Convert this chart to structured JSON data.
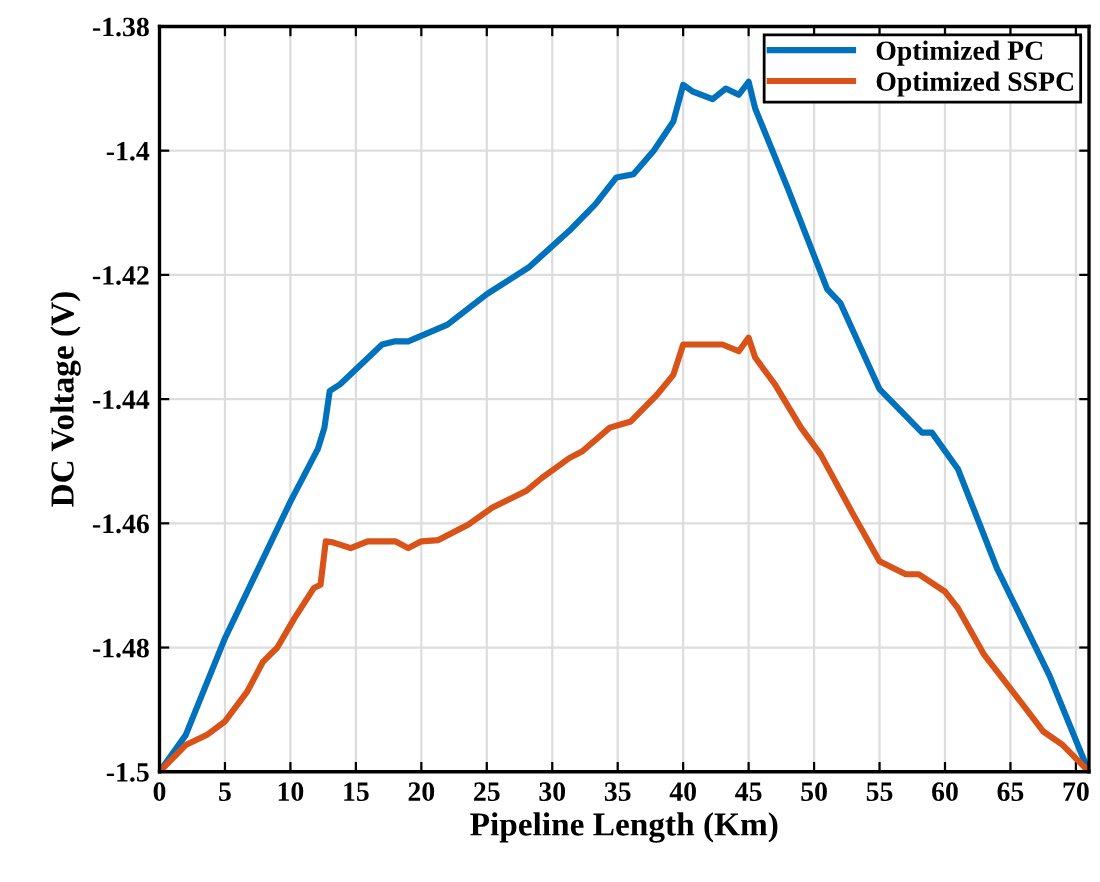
{
  "chart_data": {
    "type": "line",
    "xlabel": "Pipeline Length (Km)",
    "ylabel": "DC Voltage (V)",
    "xlim": [
      0,
      71
    ],
    "ylim": [
      -1.5,
      -1.38
    ],
    "xticks": [
      0,
      5,
      10,
      15,
      20,
      25,
      30,
      35,
      40,
      45,
      50,
      55,
      60,
      65,
      70
    ],
    "yticks": [
      -1.5,
      -1.48,
      -1.46,
      -1.44,
      -1.42,
      -1.4,
      -1.38
    ],
    "grid": true,
    "legend": "top right",
    "line_style": "solid",
    "marker": "none",
    "series": [
      {
        "name": "Optimized PC",
        "color": "#0072bd",
        "x": [
          0,
          2,
          5,
          10,
          12.1,
          12.6,
          13,
          13.8,
          17,
          18,
          19,
          22,
          25,
          28.2,
          31.3,
          33.3,
          34.9,
          36.2,
          37.75,
          39.25,
          40,
          40.75,
          42.25,
          43.25,
          44.25,
          45,
          45.5,
          48,
          51,
          52,
          55,
          57,
          58.25,
          59,
          61,
          64,
          68,
          70.5,
          71
        ],
        "values": [
          -1.5,
          -1.4941,
          -1.4785,
          -1.4565,
          -1.448,
          -1.4446,
          -1.4387,
          -1.4376,
          -1.4312,
          -1.4307,
          -1.4307,
          -1.428,
          -1.4231,
          -1.4188,
          -1.4129,
          -1.4086,
          -1.4043,
          -1.4038,
          -1.4,
          -1.3953,
          -1.3894,
          -1.3905,
          -1.3917,
          -1.39,
          -1.391,
          -1.3889,
          -1.3932,
          -1.4061,
          -1.4223,
          -1.4245,
          -1.4384,
          -1.4427,
          -1.4454,
          -1.4454,
          -1.4513,
          -1.4674,
          -1.4846,
          -1.4975,
          -1.5
        ]
      },
      {
        "name": "Optimized SSPC",
        "color": "#d95319",
        "x": [
          0,
          2,
          3.6,
          5,
          6.7,
          7.9,
          9,
          10.3,
          11.8,
          12.3,
          12.7,
          13.3,
          14.6,
          15.9,
          18,
          19,
          20,
          21.3,
          23.6,
          25.4,
          28,
          29.2,
          31.3,
          32.3,
          34.4,
          36,
          38,
          39.25,
          40,
          43,
          44.25,
          45,
          45.5,
          47,
          49,
          50.5,
          53,
          55,
          57,
          58,
          60,
          61,
          63,
          65,
          67.5,
          69,
          71
        ],
        "values": [
          -1.5,
          -1.4957,
          -1.4941,
          -1.4919,
          -1.4871,
          -1.4823,
          -1.48,
          -1.4753,
          -1.4704,
          -1.4699,
          -1.4629,
          -1.4631,
          -1.464,
          -1.4629,
          -1.4629,
          -1.464,
          -1.4629,
          -1.4627,
          -1.4602,
          -1.4575,
          -1.4548,
          -1.4527,
          -1.4495,
          -1.4484,
          -1.4446,
          -1.4436,
          -1.4393,
          -1.4361,
          -1.4312,
          -1.4312,
          -1.4323,
          -1.4301,
          -1.4333,
          -1.4376,
          -1.4446,
          -1.4489,
          -1.4586,
          -1.4661,
          -1.4682,
          -1.4682,
          -1.471,
          -1.4737,
          -1.4812,
          -1.4866,
          -1.4935,
          -1.4957,
          -1.5
        ]
      }
    ]
  }
}
